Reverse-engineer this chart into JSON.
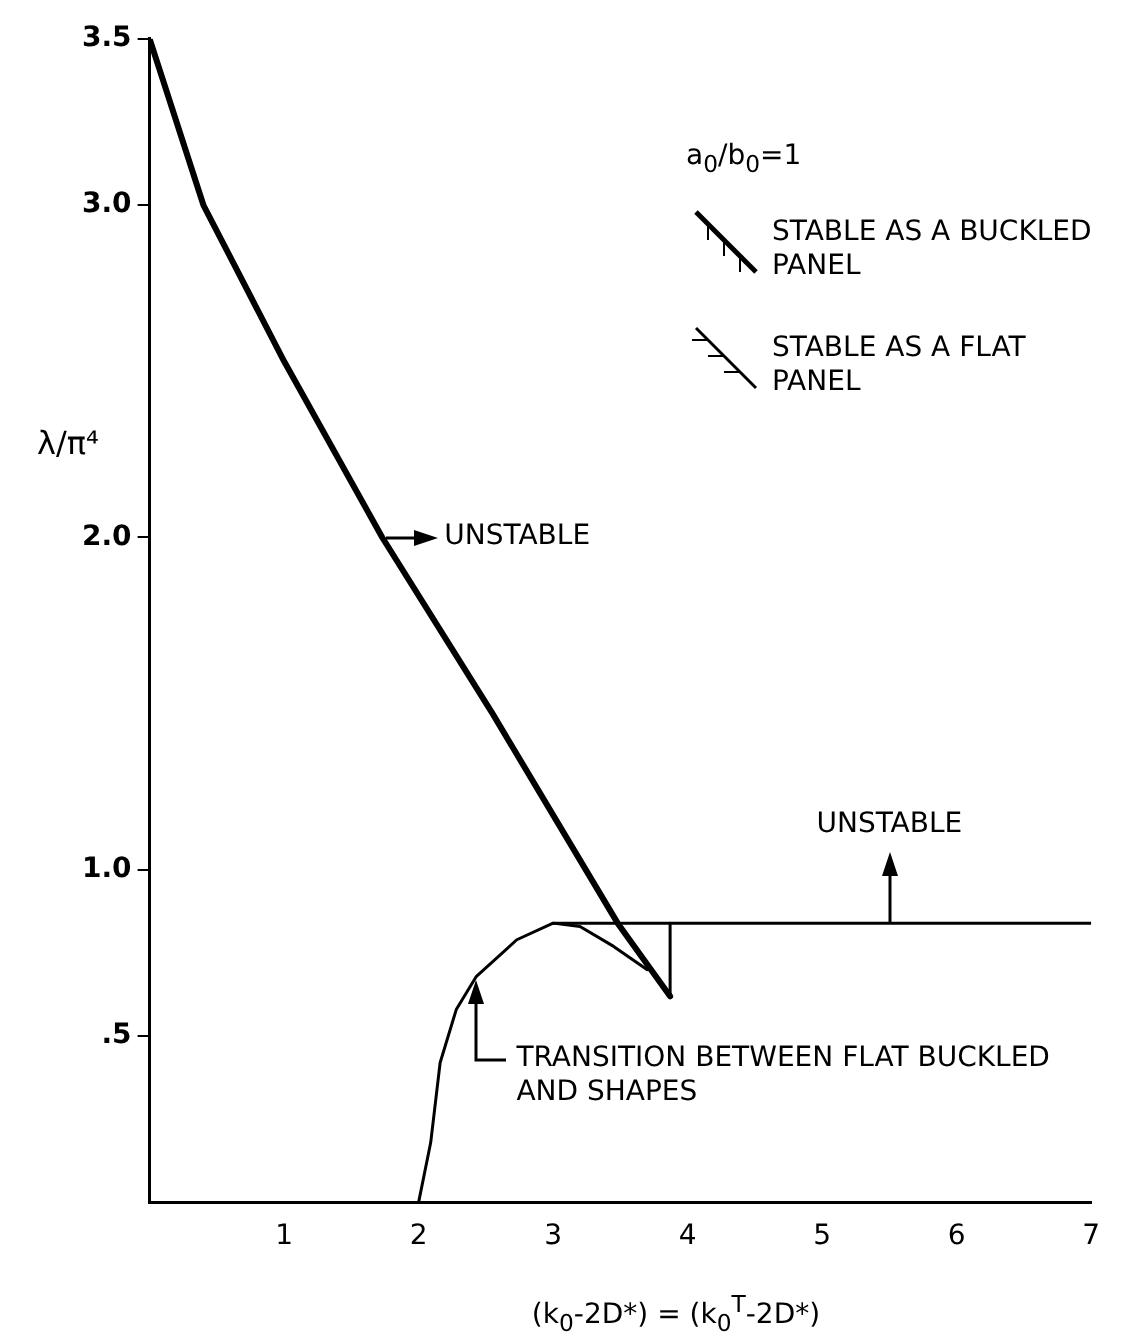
{
  "chart_data": {
    "type": "line",
    "xlabel": "(k$_{0}$-2D*) = (k$_{0}$$^{T}$-2D*)",
    "ylabel": "λ/π⁴",
    "xlim": [
      0,
      7
    ],
    "xticks": [
      1,
      2,
      3,
      4,
      5,
      6,
      7
    ],
    "ylim": [
      0,
      3.5
    ],
    "yticks": [
      {
        "value": 0.5,
        "label": ".5"
      },
      {
        "value": 1,
        "label": "1.0"
      },
      {
        "value": 2,
        "label": "2.0"
      },
      {
        "value": 3,
        "label": "3.0"
      },
      {
        "value": 3.5,
        "label": "3.5"
      }
    ],
    "grid": false,
    "legend": false,
    "series": [
      {
        "color": "#000000",
        "x": [
          0,
          0.4,
          1.0,
          1.73,
          2.55,
          3.48,
          3.87
        ],
        "values": [
          3.5,
          3.0,
          2.53,
          2.0,
          1.47,
          0.84,
          0.62
        ]
      },
      {
        "color": "#000000",
        "x": [
          2,
          2.09,
          2.16,
          2.28,
          2.43,
          2.73,
          3.0,
          3.2,
          3.45,
          3.7
        ],
        "values": [
          0,
          0.18,
          0.42,
          0.58,
          0.68,
          0.79,
          0.84,
          0.83,
          0.77,
          0.7
        ]
      },
      {
        "color": "#000000",
        "x": [
          3.0,
          7
        ],
        "values": [
          0.84,
          0.84
        ]
      },
      {
        "color": "#000000",
        "x": [
          3.87,
          3.87
        ],
        "values": [
          0.62,
          0.84
        ]
      }
    ],
    "annotations": [
      "a$_{0}$/b$_{0}$=1",
      "STABLE AS A BUCKLED PANEL",
      "STABLE AS A FLAT PANEL",
      {
        "text": "UNSTABLE",
        "x": 1.73,
        "y": 2.0
      },
      {
        "text": "UNSTABLE",
        "x": 5.5,
        "y": 0.84
      },
      {
        "text": "TRANSITION BETWEEN FLAT BUCKLED AND SHAPES",
        "x": 2.43,
        "y": 0.68
      }
    ]
  }
}
